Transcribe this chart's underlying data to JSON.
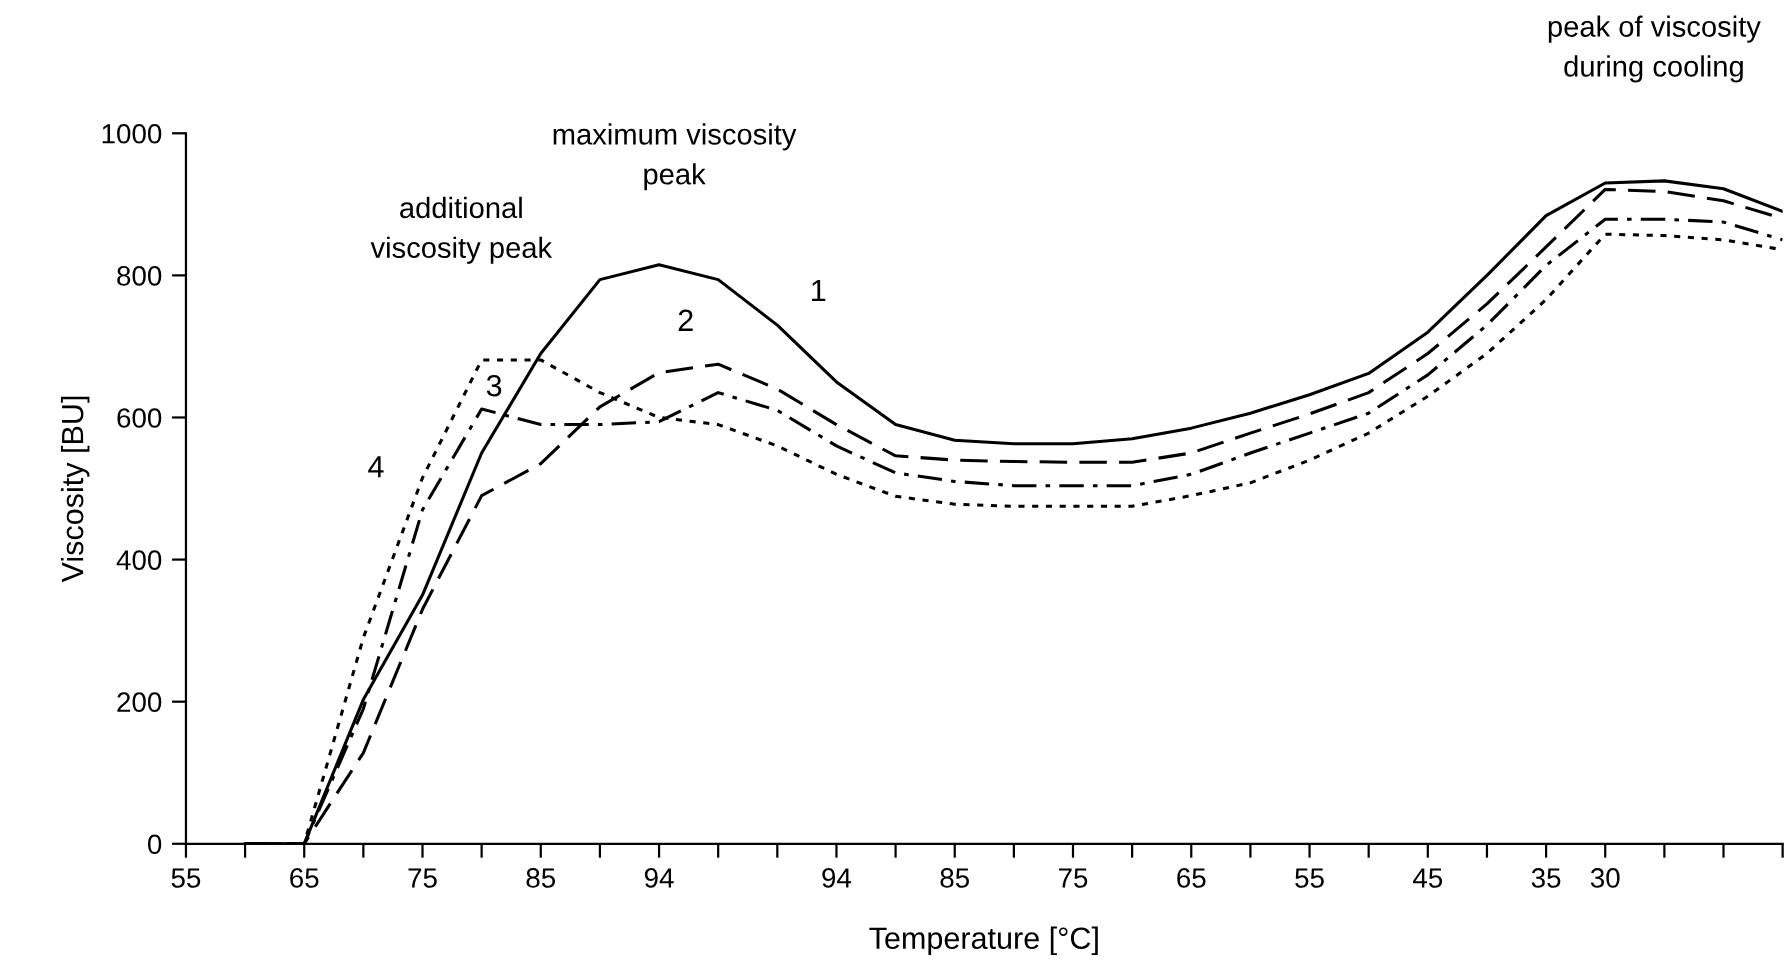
{
  "chart_data": {
    "type": "line",
    "xlabel": "Temperature [°C]",
    "ylabel": "Viscosity [BU]",
    "categories": [
      "55",
      null,
      "65",
      null,
      "75",
      null,
      "85",
      null,
      "94",
      null,
      null,
      "94",
      null,
      "85",
      null,
      "75",
      null,
      "65",
      null,
      "55",
      null,
      "45",
      null,
      "35",
      "30",
      null,
      null,
      null
    ],
    "ylim": [
      0,
      1000
    ],
    "yticks": [
      0,
      200,
      400,
      600,
      800,
      1000
    ],
    "grid": false,
    "legend": false,
    "marker": "none",
    "series": [
      {
        "name": "1",
        "color": "#000000",
        "line_style": "solid",
        "values": [
          null,
          0,
          0,
          203,
          350,
          550,
          690,
          794,
          815,
          794,
          730,
          650,
          590,
          568,
          563,
          563,
          570,
          585,
          606,
          632,
          662,
          720,
          800,
          884,
          930,
          933,
          922,
          890
        ]
      },
      {
        "name": "2",
        "color": "#000000",
        "line_style": "dashed",
        "values": [
          null,
          0,
          0,
          128,
          330,
          490,
          535,
          615,
          663,
          675,
          640,
          590,
          546,
          540,
          538,
          537,
          537,
          550,
          578,
          605,
          635,
          690,
          760,
          840,
          921,
          918,
          905,
          880
        ]
      },
      {
        "name": "3",
        "color": "#000000",
        "line_style": "dashdot",
        "values": [
          null,
          0,
          0,
          190,
          470,
          612,
          590,
          590,
          594,
          635,
          610,
          560,
          522,
          510,
          504,
          504,
          504,
          520,
          550,
          578,
          606,
          660,
          730,
          814,
          879,
          879,
          875,
          850
        ]
      },
      {
        "name": "4",
        "color": "#000000",
        "line_style": "dotted",
        "values": [
          null,
          0,
          0,
          290,
          515,
          681,
          681,
          635,
          600,
          590,
          560,
          520,
          489,
          478,
          475,
          475,
          475,
          490,
          508,
          540,
          578,
          630,
          690,
          766,
          858,
          856,
          850,
          836
        ]
      }
    ],
    "annotations": [
      "additional\nviscosity peak",
      "maximum viscosity\npeak",
      "peak of viscosity\nduring cooling"
    ]
  }
}
